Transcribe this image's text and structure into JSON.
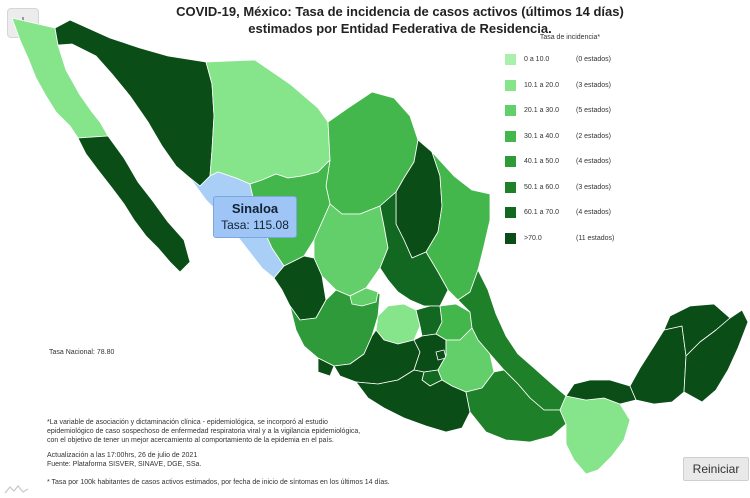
{
  "title": {
    "line1": "COVID-19, México: Tasa de incidencia de casos activos (últimos 14 días)",
    "line2": "estimados por Entidad Federativa de Residencia."
  },
  "legend": {
    "title": "Tasa de incidencia*",
    "items": [
      {
        "range": "0 a 10.0",
        "count": "(0 estados)",
        "color": "#a8f0ab"
      },
      {
        "range": "10.1 a 20.0",
        "count": "(3 estados)",
        "color": "#86e48b"
      },
      {
        "range": "20.1 a 30.0",
        "count": "(5 estados)",
        "color": "#63cf6a"
      },
      {
        "range": "30.1 a 40.0",
        "count": "(2 estados)",
        "color": "#43b74b"
      },
      {
        "range": "40.1 a 50.0",
        "count": "(4 estados)",
        "color": "#2f9a39"
      },
      {
        "range": "50.1 a 60.0",
        "count": "(3 estados)",
        "color": "#1f802a"
      },
      {
        "range": "60.1 a 70.0",
        "count": "(4 estados)",
        "color": "#136821"
      },
      {
        "range": ">70.0",
        "count": "(11 estados)",
        "color": "#0a4d17"
      }
    ]
  },
  "tooltip": {
    "state": "Sinaloa",
    "rate_label": "Tasa: 115.08",
    "highlight_color": "#a9cff7"
  },
  "national_rate": "Tasa Nacional: 78.80",
  "notes": {
    "line1": "*La variable de asociación y dictaminación clínica - epidemiológica, se incorporó al estudio",
    "line2": "epidemiológico de caso sospechoso de enfermedad respiratoria viral y a la vigilancia epidemiológica,",
    "line3": "con el objetivo de tener un mejor acercamiento al comportamiento de la epidemia en el país.",
    "update": "Actualización a las 17:00hrs, 26 de julio de 2021",
    "source": "Fuente: Plataforma SISVER, SINAVE, DGE, SSa."
  },
  "footnote": "* Tasa por 100k habitantes de casos activos estimados, por fecha de inicio de síntomas en los últimos 14 días.",
  "buttons": {
    "reset": "Reiniciar",
    "download_icon": "download-icon"
  }
}
